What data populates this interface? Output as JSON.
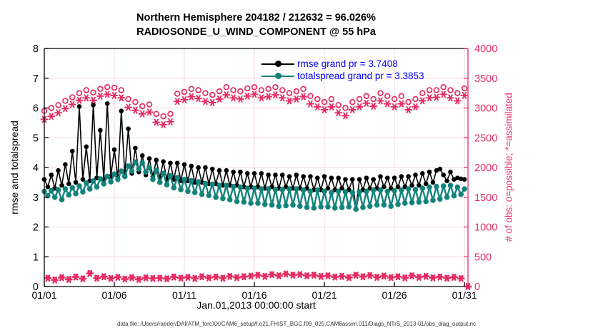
{
  "title": {
    "line1": "Northern Hemisphere 204182 / 212632 = 96.026%",
    "line2": "RADIOSONDE_U_WIND_COMPONENT @ 55 hPa"
  },
  "caption": "data file: /Users/raeder/DAI/ATM_forcXX/CAM6_setup/f.e21.FHIST_BGC.f09_025.CAM6assim.011/Diags_NTrS_2013-01/obs_diag_output.nc",
  "colors": {
    "rmse": "#000000",
    "spread": "#12837c",
    "obs": "#e72d63",
    "legend_text": "#0000ff",
    "grid": "#f2d9e0",
    "axis": "#000000"
  },
  "legend": [
    {
      "label": "rmse grand pr = 3.7408",
      "series": "rmse"
    },
    {
      "label": "totalspread grand pr = 3.3853",
      "series": "spread"
    }
  ],
  "left_axis": {
    "label": "rmse and totalspread",
    "range": [
      0,
      8
    ],
    "ticks": [
      0,
      1,
      2,
      3,
      4,
      5,
      6,
      7,
      8
    ]
  },
  "right_axis": {
    "label": "# of obs: o=possible; *=assimilated",
    "range": [
      0,
      4000
    ],
    "ticks": [
      0,
      500,
      1000,
      1500,
      2000,
      2500,
      3000,
      3500,
      4000
    ]
  },
  "x_axis": {
    "label": "Jan.01,2013 00:00:00 start",
    "range_days": [
      0,
      30.25
    ],
    "ticks": [
      {
        "day": 0,
        "label": "01/01"
      },
      {
        "day": 5,
        "label": "01/06"
      },
      {
        "day": 10,
        "label": "01/11"
      },
      {
        "day": 15,
        "label": "01/16"
      },
      {
        "day": 20,
        "label": "01/21"
      },
      {
        "day": 25,
        "label": "01/26"
      },
      {
        "day": 30,
        "label": "01/31"
      }
    ]
  },
  "chart_data": {
    "type": "line",
    "title": "Northern Hemisphere 204182 / 212632 = 96.026% | RADIOSONDE_U_WIND_COMPONENT @ 55 hPa",
    "xlabel": "Jan.01,2013 00:00:00 start",
    "ylabel_left": "rmse and totalspread",
    "ylabel_right": "# of obs: o=possible; *=assimilated",
    "ylim_left": [
      0,
      8
    ],
    "ylim_right": [
      0,
      4000
    ],
    "grid": true,
    "legend_position": "top-right-inside",
    "series": [
      {
        "name": "rmse",
        "axis": "left",
        "marker": "disc",
        "line": true,
        "color": "#000000",
        "x_rule": {
          "start": 0,
          "step": 0.25
        },
        "values": [
          3.6,
          3.35,
          3.75,
          3.3,
          3.9,
          3.4,
          4.1,
          3.45,
          4.55,
          3.5,
          6.05,
          3.6,
          4.7,
          3.55,
          6.1,
          3.65,
          5.25,
          3.6,
          6.15,
          3.7,
          4.6,
          3.65,
          5.9,
          3.75,
          5.3,
          3.8,
          4.65,
          3.85,
          4.4,
          3.75,
          4.3,
          3.7,
          4.25,
          3.65,
          4.2,
          3.6,
          4.15,
          3.6,
          4.15,
          3.55,
          4.1,
          3.55,
          4.05,
          3.5,
          4.0,
          3.5,
          4.0,
          3.45,
          3.95,
          3.45,
          3.9,
          3.4,
          3.9,
          3.4,
          3.85,
          3.4,
          3.85,
          3.35,
          3.8,
          3.35,
          3.8,
          3.35,
          3.8,
          3.3,
          3.75,
          3.35,
          3.75,
          3.3,
          3.75,
          3.35,
          3.7,
          3.3,
          3.75,
          3.3,
          3.7,
          3.3,
          3.7,
          3.25,
          3.65,
          3.25,
          3.7,
          3.3,
          3.65,
          3.25,
          3.65,
          3.3,
          3.6,
          3.25,
          3.6,
          2.6,
          3.6,
          3.25,
          3.65,
          3.3,
          3.6,
          3.3,
          3.7,
          3.35,
          3.65,
          3.3,
          3.65,
          3.35,
          3.7,
          3.35,
          3.7,
          3.4,
          3.75,
          3.4,
          3.8,
          3.45,
          3.85,
          3.5,
          3.9,
          3.95,
          3.75,
          3.55,
          3.85,
          3.6,
          3.65,
          3.62,
          3.6
        ]
      },
      {
        "name": "totalspread",
        "axis": "left",
        "marker": "disc",
        "line": true,
        "color": "#12837c",
        "x_rule": {
          "start": 0,
          "step": 0.25
        },
        "values": [
          3.2,
          3.05,
          3.22,
          3.0,
          3.25,
          2.92,
          3.28,
          3.08,
          3.32,
          3.12,
          3.38,
          3.18,
          3.48,
          3.28,
          3.55,
          3.35,
          3.62,
          3.45,
          3.7,
          3.52,
          3.78,
          3.6,
          3.88,
          3.7,
          4.05,
          3.88,
          4.18,
          3.95,
          4.15,
          3.85,
          4.0,
          3.6,
          3.9,
          3.5,
          3.8,
          3.42,
          3.72,
          3.32,
          3.66,
          3.26,
          3.6,
          3.2,
          3.56,
          3.16,
          3.52,
          3.1,
          3.46,
          3.06,
          3.44,
          3.0,
          3.4,
          2.96,
          3.4,
          2.92,
          3.36,
          2.86,
          3.34,
          2.84,
          3.3,
          2.8,
          3.3,
          2.8,
          3.28,
          2.76,
          3.28,
          2.74,
          3.26,
          2.7,
          3.26,
          2.72,
          3.28,
          2.74,
          3.28,
          2.7,
          3.24,
          2.66,
          3.2,
          2.64,
          3.24,
          2.68,
          3.2,
          2.68,
          3.16,
          2.64,
          3.2,
          2.66,
          3.18,
          2.68,
          3.16,
          2.6,
          3.18,
          2.66,
          3.2,
          2.7,
          3.24,
          2.74,
          3.24,
          2.74,
          3.2,
          2.7,
          3.22,
          2.76,
          3.24,
          2.8,
          3.28,
          2.82,
          3.26,
          2.84,
          3.3,
          2.86,
          3.34,
          2.9,
          3.36,
          2.94,
          3.38,
          3.0,
          3.4,
          3.05,
          3.34,
          3.1,
          3.28
        ]
      },
      {
        "name": "possible_00_12Z",
        "axis": "right",
        "marker": "ring",
        "line": false,
        "color": "#e72d63",
        "x_rule": {
          "start": 0,
          "step": 0.5
        },
        "values": [
          2950,
          3000,
          3050,
          3120,
          3180,
          3250,
          3300,
          3260,
          3320,
          3350,
          3340,
          3300,
          3150,
          3100,
          3030,
          3060,
          2900,
          2860,
          2900,
          3240,
          3270,
          3320,
          3300,
          3250,
          3220,
          3280,
          3350,
          3300,
          3280,
          3330,
          3350,
          3300,
          3320,
          3350,
          3300,
          3250,
          3280,
          3320,
          3200,
          3150,
          3100,
          3150,
          3050,
          3000,
          3100,
          3150,
          3200,
          3150,
          3250,
          3200,
          3150,
          3200,
          3100,
          3150,
          3250,
          3300,
          3300,
          3350,
          3300,
          3250,
          3330
        ]
      },
      {
        "name": "assimilated_00_12Z",
        "axis": "right",
        "marker": "asterisk",
        "line": false,
        "color": "#e72d63",
        "x_rule": {
          "start": 0,
          "step": 0.5
        },
        "values": [
          2810,
          2860,
          2920,
          2990,
          3060,
          3130,
          3170,
          3130,
          3200,
          3230,
          3210,
          3170,
          3010,
          2960,
          2900,
          2930,
          2760,
          2720,
          2770,
          3110,
          3140,
          3190,
          3160,
          3110,
          3090,
          3150,
          3220,
          3170,
          3150,
          3200,
          3230,
          3170,
          3190,
          3220,
          3170,
          3120,
          3150,
          3190,
          3070,
          3020,
          2970,
          3020,
          2920,
          2870,
          2970,
          3020,
          3080,
          3030,
          3120,
          3070,
          3020,
          3070,
          2970,
          3020,
          3120,
          3170,
          3180,
          3230,
          3170,
          3120,
          3210
        ]
      },
      {
        "name": "possible_06_18Z",
        "axis": "right",
        "marker": "ring-small",
        "line": false,
        "color": "#e72d63",
        "x_rule": {
          "start": 0.25,
          "step": 0.5
        },
        "values": [
          150,
          120,
          160,
          130,
          170,
          140,
          230,
          150,
          175,
          145,
          165,
          135,
          160,
          130,
          155,
          145,
          150,
          140,
          170,
          150,
          165,
          145,
          175,
          155,
          170,
          150,
          180,
          160,
          175,
          185,
          200,
          180,
          210,
          190,
          220,
          200,
          210,
          190,
          200,
          180,
          190,
          170,
          180,
          160,
          200,
          175,
          195,
          165,
          185,
          160,
          175,
          155,
          190,
          165,
          180,
          155,
          170,
          150,
          165,
          145,
          0
        ]
      },
      {
        "name": "assimilated_06_18Z",
        "axis": "right",
        "marker": "asterisk-bold",
        "line": false,
        "color": "#e72d63",
        "x_rule": {
          "start": 0.25,
          "step": 0.5
        },
        "values": [
          140,
          110,
          150,
          120,
          160,
          130,
          220,
          140,
          165,
          135,
          155,
          125,
          150,
          120,
          145,
          135,
          140,
          130,
          160,
          140,
          155,
          135,
          165,
          145,
          160,
          140,
          170,
          150,
          165,
          175,
          190,
          170,
          200,
          180,
          210,
          190,
          200,
          180,
          190,
          170,
          180,
          160,
          170,
          150,
          190,
          165,
          185,
          155,
          175,
          150,
          165,
          145,
          180,
          155,
          170,
          145,
          160,
          140,
          155,
          135,
          0
        ]
      }
    ]
  }
}
